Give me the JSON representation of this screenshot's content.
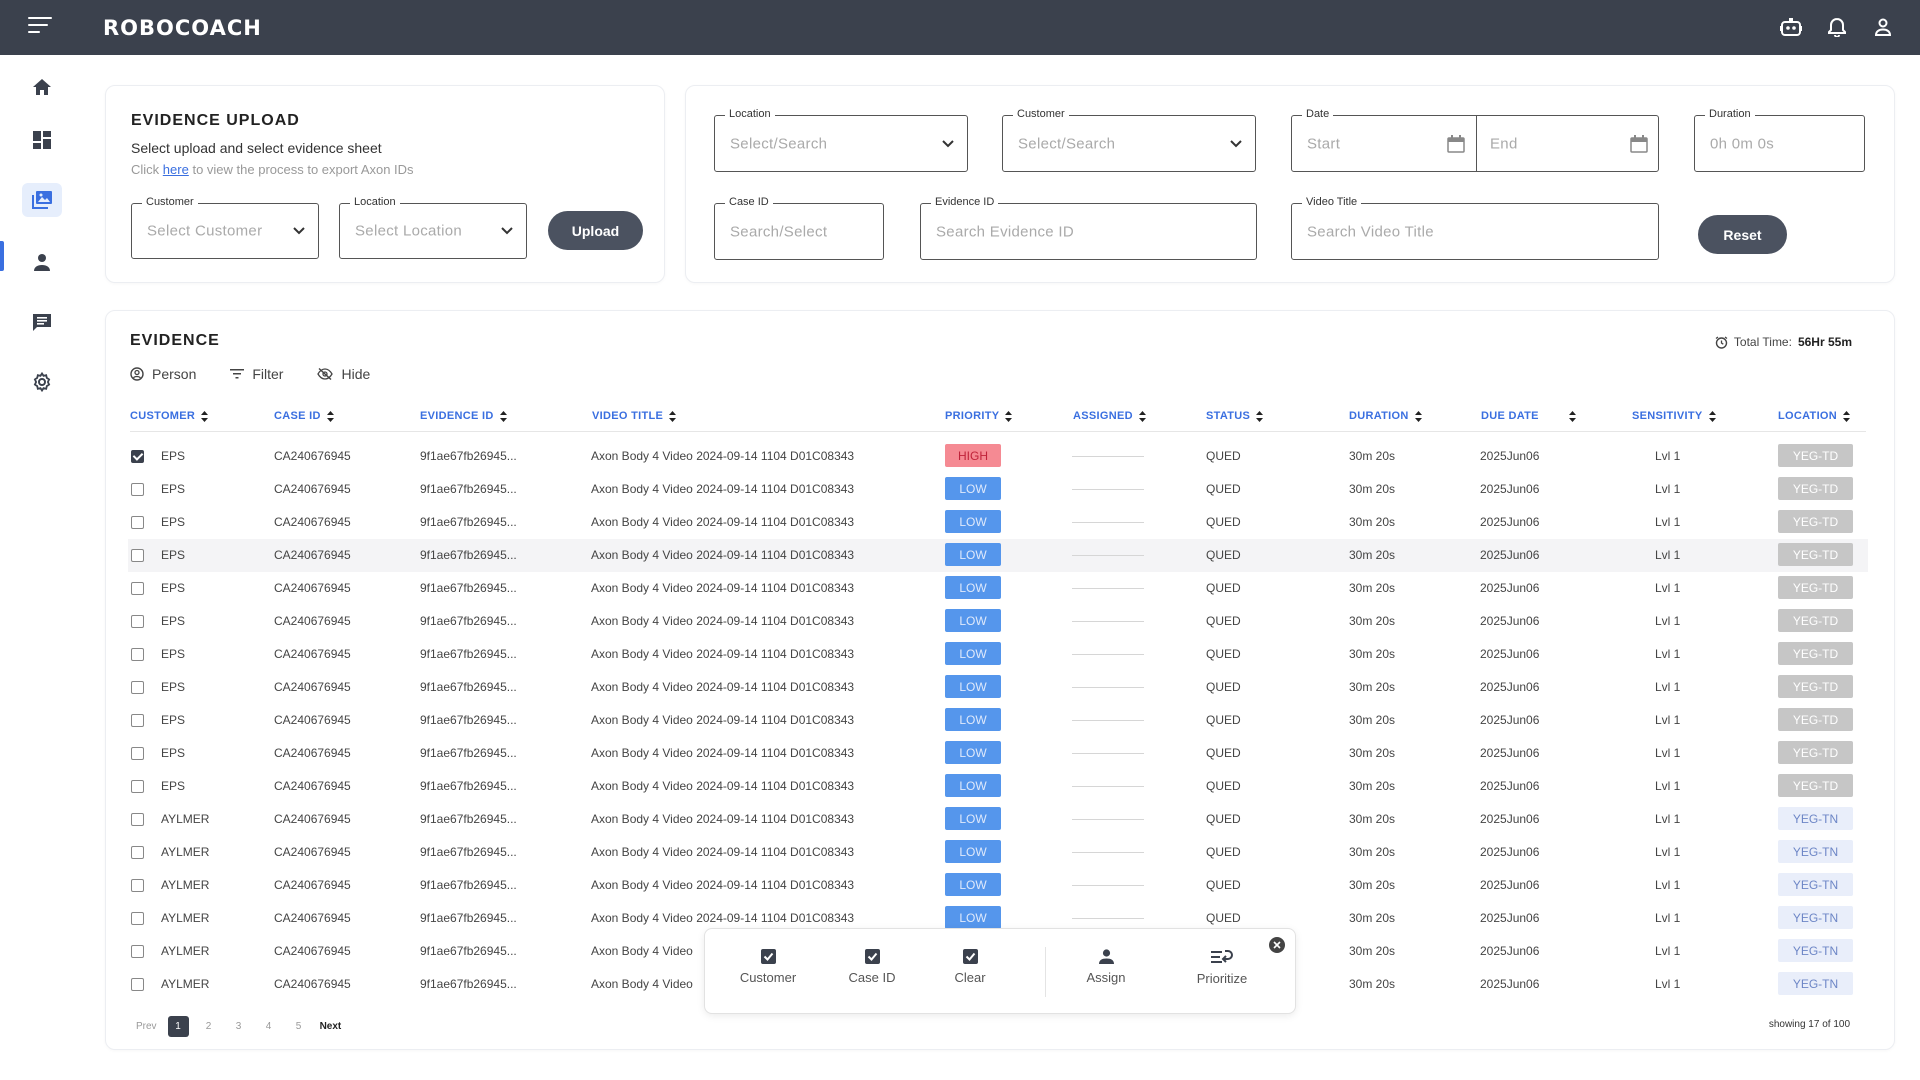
{
  "app": {
    "logo": "ROBOCOACH"
  },
  "upload": {
    "title": "EVIDENCE UPLOAD",
    "subtitle": "Select upload and select evidence sheet",
    "help_prefix": "Click",
    "help_link": "here",
    "help_suffix": "to view the process to export Axon IDs",
    "customer_label": "Customer",
    "customer_placeholder": "Select Customer",
    "location_label": "Location",
    "location_placeholder": "Select Location",
    "upload_button": "Upload"
  },
  "filters": {
    "location_label": "Location",
    "location_placeholder": "Select/Search",
    "customer_label": "Customer",
    "customer_placeholder": "Select/Search",
    "date_label": "Date",
    "date_start": "Start",
    "date_end": "End",
    "duration_label": "Duration",
    "duration_placeholder": "0h 0m 0s",
    "caseid_label": "Case ID",
    "caseid_placeholder": "Search/Select",
    "evidenceid_label": "Evidence ID",
    "evidenceid_placeholder": "Search Evidence ID",
    "videotitle_label": "Video Title",
    "videotitle_placeholder": "Search Video Title",
    "reset_button": "Reset"
  },
  "evidence": {
    "title": "EVIDENCE",
    "total_time_label": "Total Time:",
    "total_time_value": "56Hr 55m",
    "toolbar": {
      "person": "Person",
      "filter": "Filter",
      "hide": "Hide"
    },
    "columns": [
      "CUSTOMER",
      "CASE ID",
      "EVIDENCE ID",
      "VIDEO TITLE",
      "PRIORITY",
      "ASSIGNED",
      "STATUS",
      "DURATION",
      "DUE DATE",
      "SENSITIVITY",
      "LOCATION"
    ],
    "rows": [
      {
        "checked": true,
        "customer": "EPS",
        "case_id": "CA240676945",
        "evidence_id": "9f1ae67fb26945...",
        "video_title": "Axon Body 4 Video 2024-09-14 1104 D01C08343",
        "priority": "HIGH",
        "status": "QUED",
        "duration": "30m 20s",
        "due_date": "2025Jun06",
        "sensitivity": "Lvl 1",
        "location": "YEG-TD"
      },
      {
        "checked": false,
        "customer": "EPS",
        "case_id": "CA240676945",
        "evidence_id": "9f1ae67fb26945...",
        "video_title": "Axon Body 4 Video 2024-09-14 1104 D01C08343",
        "priority": "LOW",
        "status": "QUED",
        "duration": "30m 20s",
        "due_date": "2025Jun06",
        "sensitivity": "Lvl 1",
        "location": "YEG-TD"
      },
      {
        "checked": false,
        "customer": "EPS",
        "case_id": "CA240676945",
        "evidence_id": "9f1ae67fb26945...",
        "video_title": "Axon Body 4 Video 2024-09-14 1104 D01C08343",
        "priority": "LOW",
        "status": "QUED",
        "duration": "30m 20s",
        "due_date": "2025Jun06",
        "sensitivity": "Lvl 1",
        "location": "YEG-TD"
      },
      {
        "checked": false,
        "customer": "EPS",
        "case_id": "CA240676945",
        "evidence_id": "9f1ae67fb26945...",
        "video_title": "Axon Body 4 Video 2024-09-14 1104 D01C08343",
        "priority": "LOW",
        "status": "QUED",
        "duration": "30m 20s",
        "due_date": "2025Jun06",
        "sensitivity": "Lvl 1",
        "location": "YEG-TD",
        "highlight": true
      },
      {
        "checked": false,
        "customer": "EPS",
        "case_id": "CA240676945",
        "evidence_id": "9f1ae67fb26945...",
        "video_title": "Axon Body 4 Video 2024-09-14 1104 D01C08343",
        "priority": "LOW",
        "status": "QUED",
        "duration": "30m 20s",
        "due_date": "2025Jun06",
        "sensitivity": "Lvl 1",
        "location": "YEG-TD"
      },
      {
        "checked": false,
        "customer": "EPS",
        "case_id": "CA240676945",
        "evidence_id": "9f1ae67fb26945...",
        "video_title": "Axon Body 4 Video 2024-09-14 1104 D01C08343",
        "priority": "LOW",
        "status": "QUED",
        "duration": "30m 20s",
        "due_date": "2025Jun06",
        "sensitivity": "Lvl 1",
        "location": "YEG-TD"
      },
      {
        "checked": false,
        "customer": "EPS",
        "case_id": "CA240676945",
        "evidence_id": "9f1ae67fb26945...",
        "video_title": "Axon Body 4 Video 2024-09-14 1104 D01C08343",
        "priority": "LOW",
        "status": "QUED",
        "duration": "30m 20s",
        "due_date": "2025Jun06",
        "sensitivity": "Lvl 1",
        "location": "YEG-TD"
      },
      {
        "checked": false,
        "customer": "EPS",
        "case_id": "CA240676945",
        "evidence_id": "9f1ae67fb26945...",
        "video_title": "Axon Body 4 Video 2024-09-14 1104 D01C08343",
        "priority": "LOW",
        "status": "QUED",
        "duration": "30m 20s",
        "due_date": "2025Jun06",
        "sensitivity": "Lvl 1",
        "location": "YEG-TD"
      },
      {
        "checked": false,
        "customer": "EPS",
        "case_id": "CA240676945",
        "evidence_id": "9f1ae67fb26945...",
        "video_title": "Axon Body 4 Video 2024-09-14 1104 D01C08343",
        "priority": "LOW",
        "status": "QUED",
        "duration": "30m 20s",
        "due_date": "2025Jun06",
        "sensitivity": "Lvl 1",
        "location": "YEG-TD"
      },
      {
        "checked": false,
        "customer": "EPS",
        "case_id": "CA240676945",
        "evidence_id": "9f1ae67fb26945...",
        "video_title": "Axon Body 4 Video 2024-09-14 1104 D01C08343",
        "priority": "LOW",
        "status": "QUED",
        "duration": "30m 20s",
        "due_date": "2025Jun06",
        "sensitivity": "Lvl 1",
        "location": "YEG-TD"
      },
      {
        "checked": false,
        "customer": "EPS",
        "case_id": "CA240676945",
        "evidence_id": "9f1ae67fb26945...",
        "video_title": "Axon Body 4 Video 2024-09-14 1104 D01C08343",
        "priority": "LOW",
        "status": "QUED",
        "duration": "30m 20s",
        "due_date": "2025Jun06",
        "sensitivity": "Lvl 1",
        "location": "YEG-TD"
      },
      {
        "checked": false,
        "customer": "AYLMER",
        "case_id": "CA240676945",
        "evidence_id": "9f1ae67fb26945...",
        "video_title": "Axon Body 4 Video 2024-09-14 1104 D01C08343",
        "priority": "LOW",
        "status": "QUED",
        "duration": "30m 20s",
        "due_date": "2025Jun06",
        "sensitivity": "Lvl 1",
        "location": "YEG-TN"
      },
      {
        "checked": false,
        "customer": "AYLMER",
        "case_id": "CA240676945",
        "evidence_id": "9f1ae67fb26945...",
        "video_title": "Axon Body 4 Video 2024-09-14 1104 D01C08343",
        "priority": "LOW",
        "status": "QUED",
        "duration": "30m 20s",
        "due_date": "2025Jun06",
        "sensitivity": "Lvl 1",
        "location": "YEG-TN"
      },
      {
        "checked": false,
        "customer": "AYLMER",
        "case_id": "CA240676945",
        "evidence_id": "9f1ae67fb26945...",
        "video_title": "Axon Body 4 Video 2024-09-14 1104 D01C08343",
        "priority": "LOW",
        "status": "QUED",
        "duration": "30m 20s",
        "due_date": "2025Jun06",
        "sensitivity": "Lvl 1",
        "location": "YEG-TN"
      },
      {
        "checked": false,
        "customer": "AYLMER",
        "case_id": "CA240676945",
        "evidence_id": "9f1ae67fb26945...",
        "video_title": "Axon Body 4 Video 2024-09-14 1104 D01C08343",
        "priority": "LOW",
        "status": "QUED",
        "duration": "30m 20s",
        "due_date": "2025Jun06",
        "sensitivity": "Lvl 1",
        "location": "YEG-TN"
      },
      {
        "checked": false,
        "customer": "AYLMER",
        "case_id": "CA240676945",
        "evidence_id": "9f1ae67fb26945...",
        "video_title": "Axon Body 4 Video",
        "priority": "",
        "status": "",
        "duration": "30m 20s",
        "due_date": "2025Jun06",
        "sensitivity": "Lvl 1",
        "location": "YEG-TN"
      },
      {
        "checked": false,
        "customer": "AYLMER",
        "case_id": "CA240676945",
        "evidence_id": "9f1ae67fb26945...",
        "video_title": "Axon Body 4 Video",
        "priority": "",
        "status": "",
        "duration": "30m 20s",
        "due_date": "2025Jun06",
        "sensitivity": "Lvl 1",
        "location": "YEG-TN"
      }
    ]
  },
  "actions": {
    "customer": "Customer",
    "case_id": "Case ID",
    "clear": "Clear",
    "assign": "Assign",
    "prioritize": "Prioritize"
  },
  "pagination": {
    "prev": "Prev",
    "pages": [
      "1",
      "2",
      "3",
      "4",
      "5"
    ],
    "active": "1",
    "next": "Next",
    "showing": "showing 17 of 100"
  },
  "colors": {
    "topbar": "#3b414d",
    "accent": "#3a6fe0",
    "high": "#f58a93",
    "low": "#5596ec"
  },
  "icons": [
    "menu-icon",
    "robot-icon",
    "bell-icon",
    "user-icon",
    "home-icon",
    "dashboard-icon",
    "image-icon",
    "person-icon",
    "chat-icon",
    "gear-icon",
    "calendar-icon",
    "alarm-icon",
    "eye-off-icon",
    "filter-icon",
    "checkbox-icon",
    "prioritize-icon",
    "close-icon"
  ]
}
